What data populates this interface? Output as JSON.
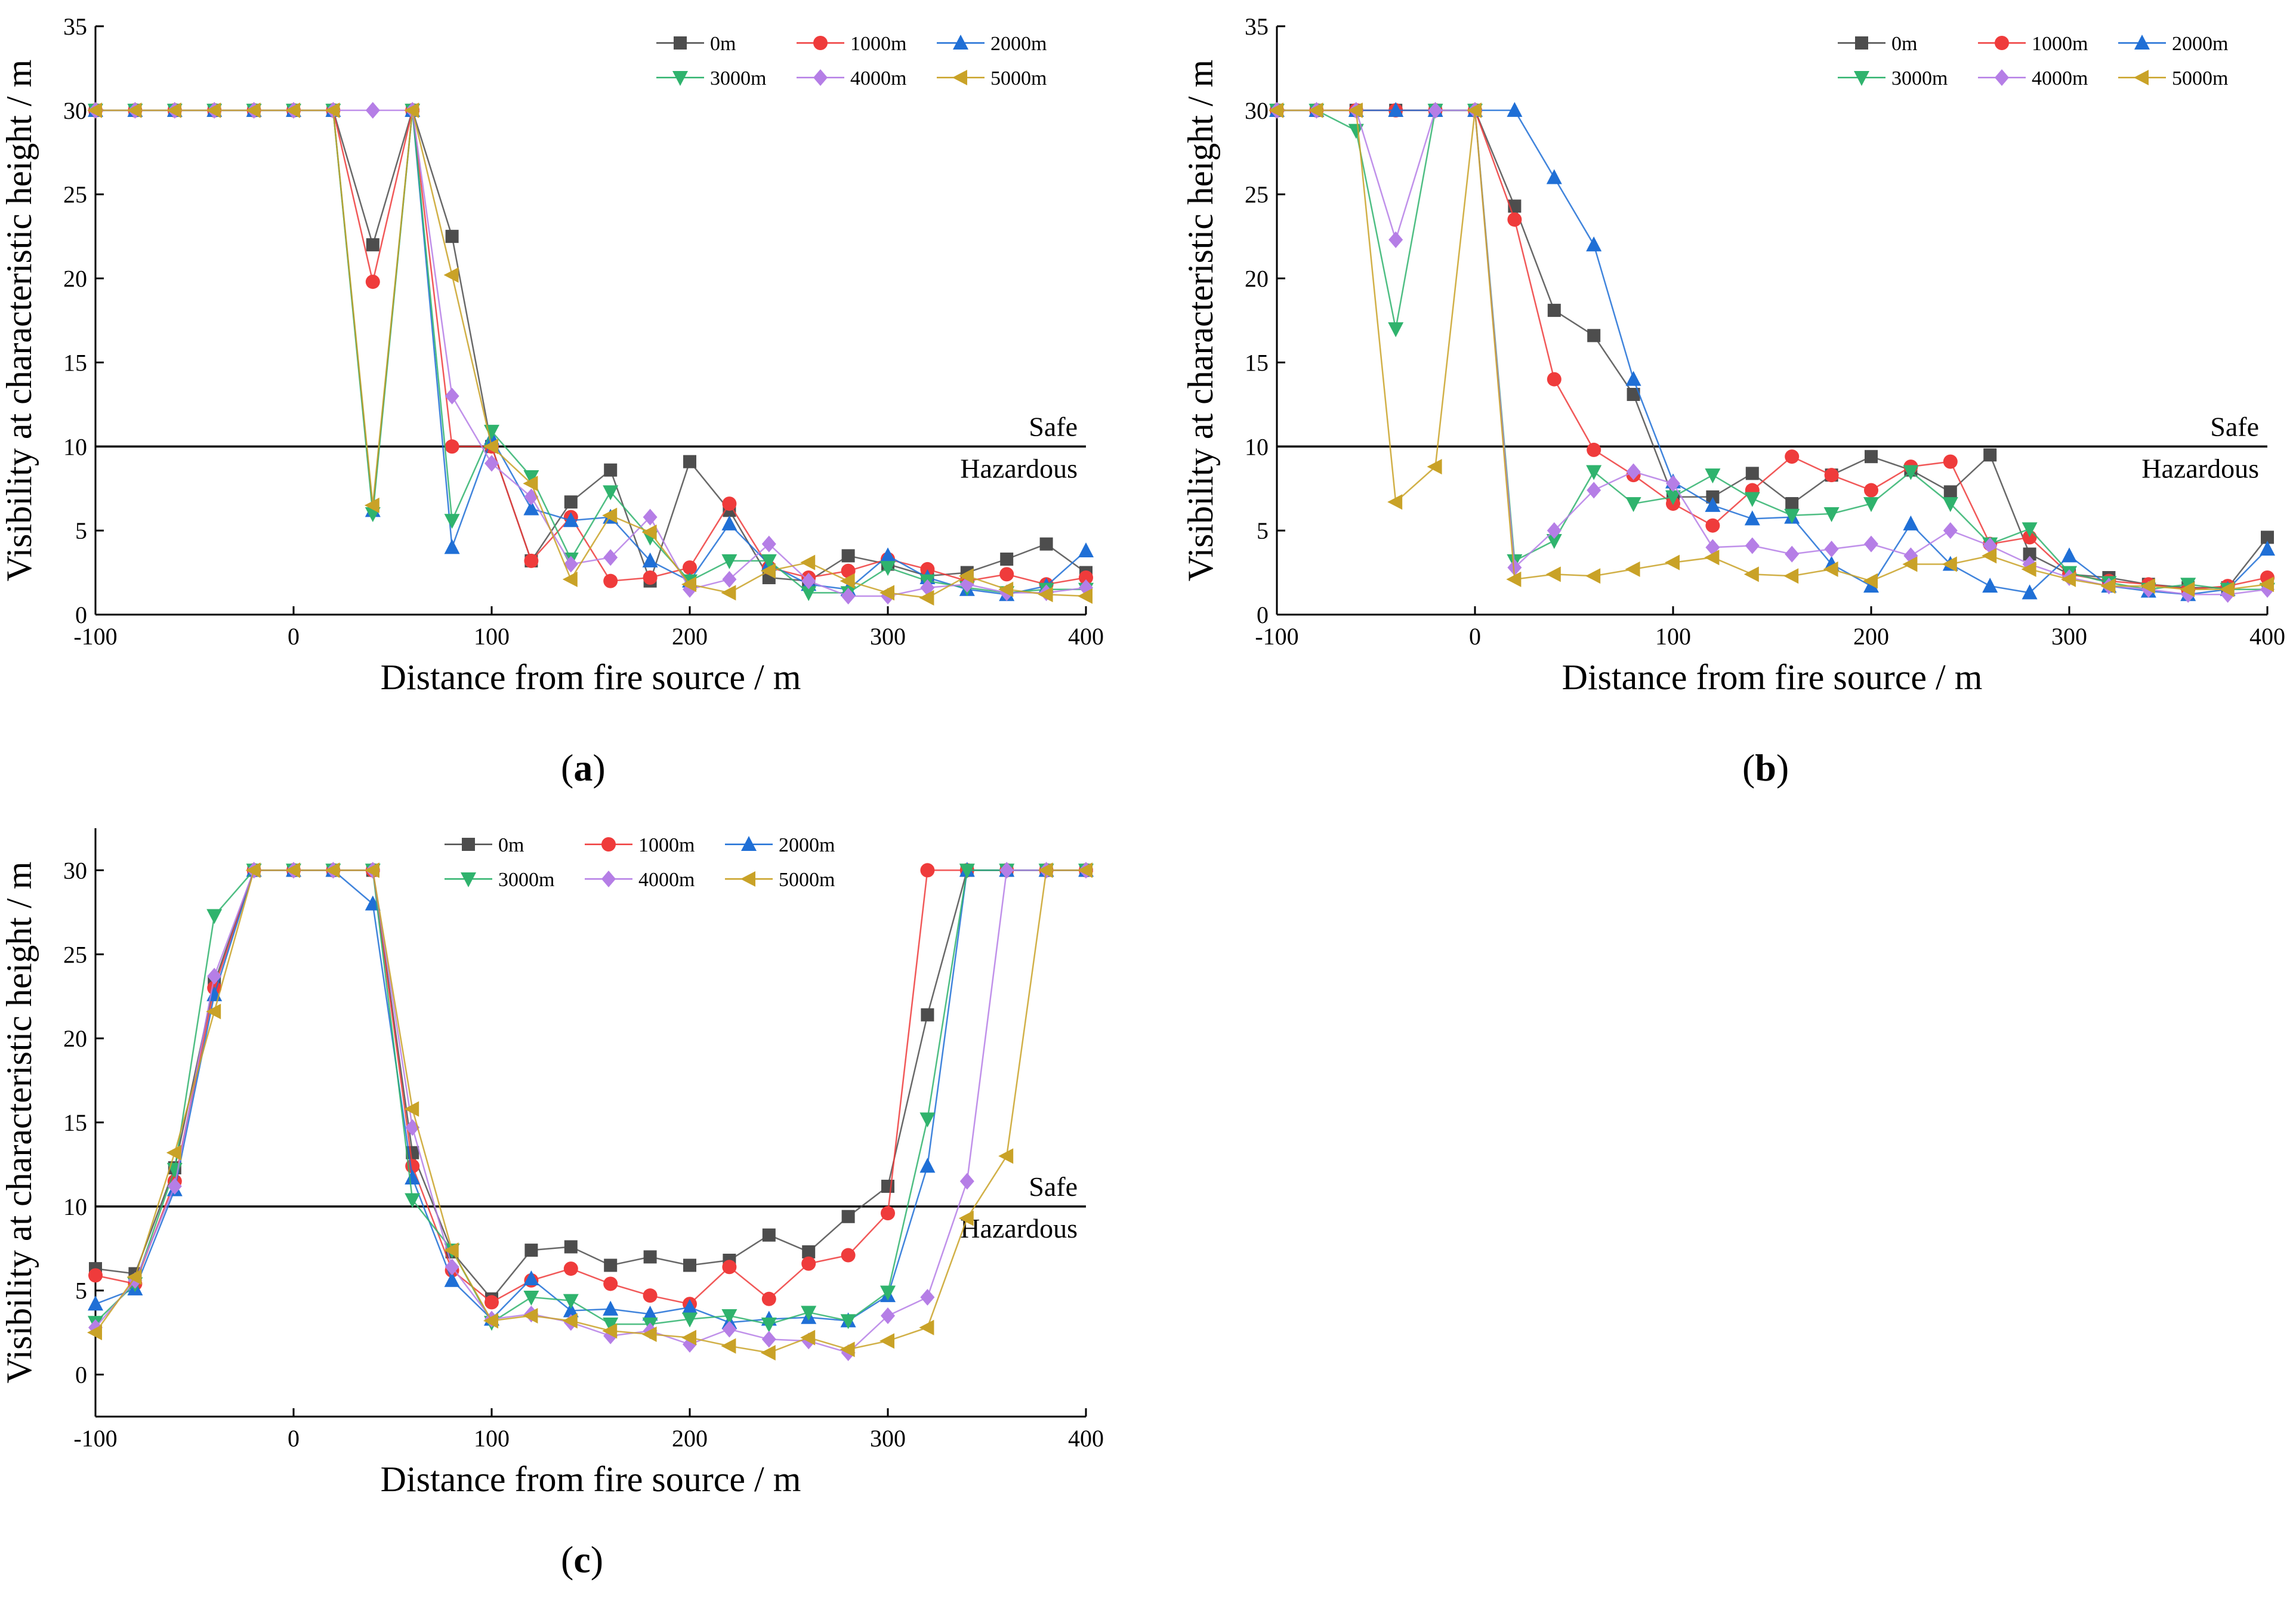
{
  "colors": {
    "0m": "#4d4d4d",
    "1000m": "#ef3b3b",
    "2000m": "#1f6fd6",
    "3000m": "#2fb36d",
    "4000m": "#b57ee6",
    "5000m": "#c9a227"
  },
  "series_meta": [
    {
      "name": "0m",
      "marker": "square"
    },
    {
      "name": "1000m",
      "marker": "circle"
    },
    {
      "name": "2000m",
      "marker": "triangle-up"
    },
    {
      "name": "3000m",
      "marker": "triangle-down"
    },
    {
      "name": "4000m",
      "marker": "diamond"
    },
    {
      "name": "5000m",
      "marker": "triangle-left"
    }
  ],
  "chart_data": [
    {
      "id": "a",
      "type": "line",
      "panel_label": "a",
      "title": "",
      "xlabel": "Distance from fire source / m",
      "ylabel": "Visibility at characteristic height / m",
      "xlim": [
        -100,
        400
      ],
      "ylim": [
        0,
        35
      ],
      "xticks": [
        -100,
        0,
        100,
        200,
        300,
        400
      ],
      "yticks": [
        0,
        5,
        10,
        15,
        20,
        25,
        30,
        35
      ],
      "grid": false,
      "legend_position": "top-right",
      "threshold": {
        "y": 10,
        "upper_label": "Safe",
        "lower_label": "Hazardous"
      },
      "x": [
        -100,
        -80,
        -60,
        -40,
        -20,
        0,
        20,
        40,
        60,
        80,
        100,
        120,
        140,
        160,
        180,
        200,
        220,
        240,
        260,
        280,
        300,
        320,
        340,
        360,
        380,
        400
      ],
      "series": [
        {
          "name": "0m",
          "values": [
            30,
            30,
            30,
            30,
            30,
            30,
            30,
            22,
            30,
            22.5,
            10,
            3.2,
            6.7,
            8.6,
            2,
            9.1,
            6.2,
            2.2,
            2,
            3.5,
            3,
            2.3,
            2.5,
            3.3,
            4.2,
            2.5
          ]
        },
        {
          "name": "1000m",
          "values": [
            30,
            30,
            30,
            30,
            30,
            30,
            30,
            19.8,
            30,
            10,
            10,
            3.2,
            5.8,
            2,
            2.2,
            2.8,
            6.6,
            2.8,
            2.2,
            2.6,
            3.3,
            2.7,
            2,
            2.4,
            1.8,
            2.2
          ]
        },
        {
          "name": "2000m",
          "values": [
            30,
            30,
            30,
            30,
            30,
            30,
            30,
            6.2,
            30,
            4,
            10.5,
            6.3,
            5.6,
            5.8,
            3.2,
            2,
            5.4,
            3,
            1.8,
            1.5,
            3.5,
            2.2,
            1.5,
            1.2,
            1.7,
            3.8
          ]
        },
        {
          "name": "3000m",
          "values": [
            30,
            30,
            30,
            30,
            30,
            30,
            30,
            6,
            30,
            5.6,
            10.9,
            8.2,
            3.3,
            7.3,
            4.6,
            2,
            3.2,
            3.2,
            1.3,
            1.3,
            2.8,
            2,
            1.6,
            1.3,
            1.5,
            1.5
          ]
        },
        {
          "name": "4000m",
          "values": [
            30,
            30,
            30,
            30,
            30,
            30,
            30,
            30,
            30,
            13,
            9,
            7,
            3,
            3.4,
            5.8,
            1.5,
            2.1,
            4.2,
            2,
            1.1,
            1.1,
            1.6,
            1.8,
            1.3,
            1.3,
            1.6
          ]
        },
        {
          "name": "5000m",
          "values": [
            30,
            30,
            30,
            30,
            30,
            30,
            30,
            6.5,
            30,
            20.2,
            10,
            7.8,
            2.1,
            5.9,
            4.9,
            1.8,
            1.3,
            2.6,
            3.1,
            2,
            1.3,
            1,
            2.3,
            1.5,
            1.2,
            1.1
          ]
        }
      ]
    },
    {
      "id": "b",
      "type": "line",
      "panel_label": "b",
      "title": "",
      "xlabel": "Distance from fire source / m",
      "ylabel": "Visibility at characteristic height / m",
      "xlim": [
        -100,
        400
      ],
      "ylim": [
        0,
        35
      ],
      "xticks": [
        -100,
        0,
        100,
        200,
        300,
        400
      ],
      "yticks": [
        0,
        5,
        10,
        15,
        20,
        25,
        30,
        35
      ],
      "grid": false,
      "legend_position": "top-right",
      "threshold": {
        "y": 10,
        "upper_label": "Safe",
        "lower_label": "Hazardous"
      },
      "x": [
        -100,
        -80,
        -60,
        -40,
        -20,
        0,
        20,
        40,
        60,
        80,
        100,
        120,
        140,
        160,
        180,
        200,
        220,
        240,
        260,
        280,
        300,
        320,
        340,
        360,
        380,
        400
      ],
      "series": [
        {
          "name": "0m",
          "values": [
            30,
            30,
            30,
            30,
            30,
            30,
            24.3,
            18.1,
            16.6,
            13.1,
            7,
            7,
            8.4,
            6.6,
            8.3,
            9.4,
            8.6,
            7.3,
            9.5,
            3.6,
            2.4,
            2.2,
            1.8,
            1.6,
            1.6,
            4.6
          ]
        },
        {
          "name": "1000m",
          "values": [
            30,
            30,
            30,
            30,
            30,
            30,
            23.5,
            14,
            9.8,
            8.3,
            6.6,
            5.3,
            7.4,
            9.4,
            8.3,
            7.4,
            8.8,
            9.1,
            4.2,
            4.6,
            2.4,
            2,
            1.8,
            1.5,
            1.7,
            2.2
          ]
        },
        {
          "name": "2000m",
          "values": [
            30,
            30,
            30,
            30,
            30,
            30,
            30,
            26,
            22,
            14,
            7.9,
            6.5,
            5.7,
            5.8,
            3,
            1.7,
            5.4,
            3,
            1.7,
            1.3,
            3.5,
            1.7,
            1.4,
            1.2,
            1.5,
            3.9
          ]
        },
        {
          "name": "3000m",
          "values": [
            30,
            30,
            28.8,
            17,
            30,
            30,
            3.2,
            4.4,
            8.5,
            6.6,
            7,
            8.3,
            6.9,
            5.9,
            6,
            6.6,
            8.5,
            6.6,
            4.2,
            5.1,
            2.5,
            1.9,
            1.5,
            1.8,
            1.5,
            1.5
          ]
        },
        {
          "name": "4000m",
          "values": [
            30,
            30,
            30,
            22.3,
            30,
            30,
            2.8,
            5,
            7.4,
            8.5,
            7.8,
            4,
            4.1,
            3.6,
            3.9,
            4.2,
            3.5,
            5,
            4.1,
            3,
            2.2,
            1.7,
            1.5,
            1.2,
            1.2,
            1.5
          ]
        },
        {
          "name": "5000m",
          "values": [
            30,
            30,
            30,
            6.7,
            8.8,
            30,
            2.1,
            2.4,
            2.3,
            2.7,
            3.1,
            3.4,
            2.4,
            2.3,
            2.7,
            2,
            3,
            3,
            3.5,
            2.7,
            2.1,
            1.7,
            1.7,
            1.5,
            1.5,
            1.8
          ]
        }
      ]
    },
    {
      "id": "c",
      "type": "line",
      "panel_label": "c",
      "title": "",
      "xlabel": "Distance from fire source / m",
      "ylabel": "Visibility at characteristic height / m",
      "xlim": [
        -100,
        400
      ],
      "ylim": [
        -2.5,
        32.5
      ],
      "xticks": [
        -100,
        0,
        100,
        200,
        300,
        400
      ],
      "yticks": [
        0,
        5,
        10,
        15,
        20,
        25,
        30
      ],
      "grid": false,
      "legend_position": "top-center",
      "threshold": {
        "y": 10,
        "upper_label": "Safe",
        "lower_label": "Hazardous"
      },
      "x": [
        -100,
        -80,
        -60,
        -40,
        -20,
        0,
        20,
        40,
        60,
        80,
        100,
        120,
        140,
        160,
        180,
        200,
        220,
        240,
        260,
        280,
        300,
        320,
        340,
        360,
        380,
        400
      ],
      "series": [
        {
          "name": "0m",
          "values": [
            6.3,
            6,
            12.3,
            23.3,
            30,
            30,
            30,
            30,
            13.2,
            7.3,
            4.5,
            7.4,
            7.6,
            6.5,
            7,
            6.5,
            6.8,
            8.3,
            7.3,
            9.4,
            11.2,
            21.4,
            30,
            30,
            30,
            30
          ]
        },
        {
          "name": "1000m",
          "values": [
            5.9,
            5.4,
            11.5,
            23,
            30,
            30,
            30,
            30,
            12.4,
            6.2,
            4.3,
            5.6,
            6.3,
            5.4,
            4.7,
            4.2,
            6.4,
            4.5,
            6.6,
            7.1,
            9.6,
            30,
            30,
            30,
            30,
            30
          ]
        },
        {
          "name": "2000m",
          "values": [
            4.2,
            5.1,
            11,
            22.6,
            30,
            30,
            30,
            28,
            11.7,
            5.6,
            3.3,
            5.7,
            3.8,
            3.9,
            3.6,
            4,
            3.1,
            3.3,
            3.4,
            3.2,
            4.7,
            12.4,
            30,
            30,
            30,
            30
          ]
        },
        {
          "name": "3000m",
          "values": [
            3.1,
            5.4,
            12.2,
            27.3,
            30,
            30,
            30,
            30,
            10.4,
            7.4,
            3.1,
            4.6,
            4.4,
            3,
            3,
            3.3,
            3.5,
            3,
            3.7,
            3.2,
            4.9,
            15.2,
            30,
            30,
            30,
            30
          ]
        },
        {
          "name": "4000m",
          "values": [
            2.8,
            5.6,
            11.2,
            23.7,
            30,
            30,
            30,
            30,
            14.7,
            6.4,
            3.3,
            3.6,
            3.1,
            2.3,
            2.6,
            1.8,
            2.7,
            2.1,
            2,
            1.3,
            3.5,
            4.6,
            11.5,
            30,
            30,
            30
          ]
        },
        {
          "name": "5000m",
          "values": [
            2.5,
            5.8,
            13.2,
            21.6,
            30,
            30,
            30,
            30,
            15.8,
            7.4,
            3.2,
            3.5,
            3.2,
            2.6,
            2.4,
            2.2,
            1.7,
            1.3,
            2.2,
            1.5,
            2,
            2.8,
            9.3,
            13,
            30,
            30
          ]
        }
      ]
    }
  ]
}
